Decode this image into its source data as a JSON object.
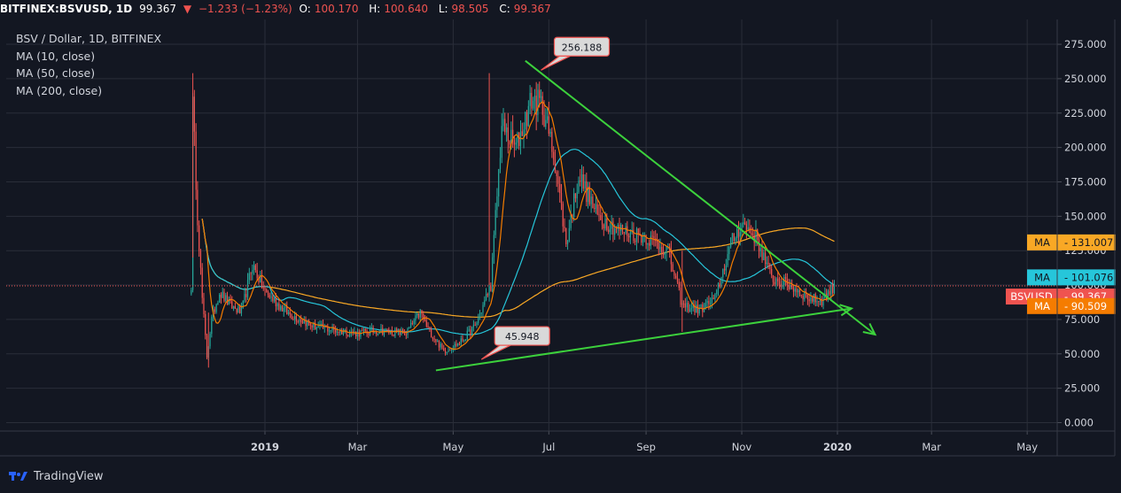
{
  "header": {
    "symbol": "BITFINEX:BSVUSD, 1D",
    "last": "99.367",
    "change": "−1.233 (−1.23%)",
    "open_label": "O:",
    "open": "100.170",
    "high_label": "H:",
    "high": "100.640",
    "low_label": "L:",
    "low": "98.505",
    "close_label": "C:",
    "close": "99.367"
  },
  "legend": {
    "title": "BSV / Dollar, 1D, BITFINEX",
    "ma10": "MA (10, close)",
    "ma50": "MA (50, close)",
    "ma200": "MA (200, close)"
  },
  "footer": {
    "brand": "TradingView"
  },
  "colors": {
    "background": "#131722",
    "grid": "#2a2e39",
    "up": "#26a69a",
    "down": "#ef5350",
    "ma10": "#f57c00",
    "ma50": "#26c6da",
    "ma200": "#f9a825",
    "trendline": "#3cd13c",
    "last_price_line": "#ef5350"
  },
  "chart_data": {
    "type": "candlestick",
    "symbol": "BSVUSD",
    "exchange": "BITFINEX",
    "interval": "1D",
    "x_ticks": [
      "2019",
      "Mar",
      "May",
      "Jul",
      "Sep",
      "Nov",
      "2020",
      "Mar",
      "May"
    ],
    "y_ticks": [
      "0.000",
      "25.000",
      "50.000",
      "75.000",
      "100.000",
      "125.000",
      "150.000",
      "175.000",
      "200.000",
      "225.000",
      "250.000",
      "275.000"
    ],
    "ylim": [
      -5,
      285
    ],
    "price_path": [
      {
        "date": "2018-11-15",
        "price": 100
      },
      {
        "date": "2018-11-16",
        "price": 230
      },
      {
        "date": "2018-11-19",
        "price": 150
      },
      {
        "date": "2018-11-22",
        "price": 90
      },
      {
        "date": "2018-11-25",
        "price": 48
      },
      {
        "date": "2018-11-28",
        "price": 75
      },
      {
        "date": "2018-12-03",
        "price": 95
      },
      {
        "date": "2018-12-10",
        "price": 85
      },
      {
        "date": "2018-12-17",
        "price": 80
      },
      {
        "date": "2018-12-24",
        "price": 115
      },
      {
        "date": "2019-01-01",
        "price": 95
      },
      {
        "date": "2019-01-15",
        "price": 80
      },
      {
        "date": "2019-02-01",
        "price": 70
      },
      {
        "date": "2019-02-15",
        "price": 67
      },
      {
        "date": "2019-03-01",
        "price": 65
      },
      {
        "date": "2019-03-15",
        "price": 67
      },
      {
        "date": "2019-04-01",
        "price": 65
      },
      {
        "date": "2019-04-10",
        "price": 80
      },
      {
        "date": "2019-04-15",
        "price": 68
      },
      {
        "date": "2019-04-25",
        "price": 52
      },
      {
        "date": "2019-05-05",
        "price": 58
      },
      {
        "date": "2019-05-15",
        "price": 70
      },
      {
        "date": "2019-05-25",
        "price": 100
      },
      {
        "date": "2019-06-01",
        "price": 215
      },
      {
        "date": "2019-06-10",
        "price": 200
      },
      {
        "date": "2019-06-20",
        "price": 235
      },
      {
        "date": "2019-06-27",
        "price": 230
      },
      {
        "date": "2019-07-05",
        "price": 190
      },
      {
        "date": "2019-07-12",
        "price": 130
      },
      {
        "date": "2019-07-20",
        "price": 180
      },
      {
        "date": "2019-08-01",
        "price": 150
      },
      {
        "date": "2019-08-15",
        "price": 140
      },
      {
        "date": "2019-09-01",
        "price": 135
      },
      {
        "date": "2019-09-15",
        "price": 125
      },
      {
        "date": "2019-09-24",
        "price": 85
      },
      {
        "date": "2019-10-05",
        "price": 82
      },
      {
        "date": "2019-10-15",
        "price": 90
      },
      {
        "date": "2019-10-25",
        "price": 130
      },
      {
        "date": "2019-11-01",
        "price": 145
      },
      {
        "date": "2019-11-10",
        "price": 135
      },
      {
        "date": "2019-11-20",
        "price": 105
      },
      {
        "date": "2019-12-01",
        "price": 100
      },
      {
        "date": "2019-12-15",
        "price": 90
      },
      {
        "date": "2019-12-22",
        "price": 89
      },
      {
        "date": "2019-12-30",
        "price": 99.4
      }
    ],
    "indicators": [
      {
        "name": "MA (10, close)",
        "last": "90.509"
      },
      {
        "name": "MA (50, close)",
        "last": "101.076"
      },
      {
        "name": "MA (200, close)",
        "last": "131.007"
      }
    ],
    "annotations": [
      {
        "type": "callout",
        "text": "256.188",
        "date": "2019-06-26",
        "price": 256.188
      },
      {
        "type": "callout",
        "text": "45.948",
        "date": "2019-05-19",
        "price": 45.948
      },
      {
        "type": "trendline",
        "from": {
          "date": "2019-06-16",
          "price": 263
        },
        "to": {
          "date": "2020-01-25",
          "price": 64
        }
      },
      {
        "type": "trendline",
        "from": {
          "date": "2019-04-20",
          "price": 38
        },
        "to": {
          "date": "2020-01-10",
          "price": 83
        }
      }
    ],
    "price_tags": [
      {
        "label": "MA",
        "value": "131.007",
        "color": "#f9a825",
        "text_color": "#131722",
        "price": 131.007
      },
      {
        "label": "MA",
        "value": "101.076",
        "color": "#26c6da",
        "text_color": "#131722",
        "price": 101.076
      },
      {
        "label": "BSVUSD",
        "value": "99.367",
        "color": "#ef5350",
        "text_color": "#ffffff",
        "price": 99.367
      },
      {
        "label": "MA",
        "value": "90.509",
        "color": "#f57c00",
        "text_color": "#ffffff",
        "price": 90.509
      }
    ]
  }
}
